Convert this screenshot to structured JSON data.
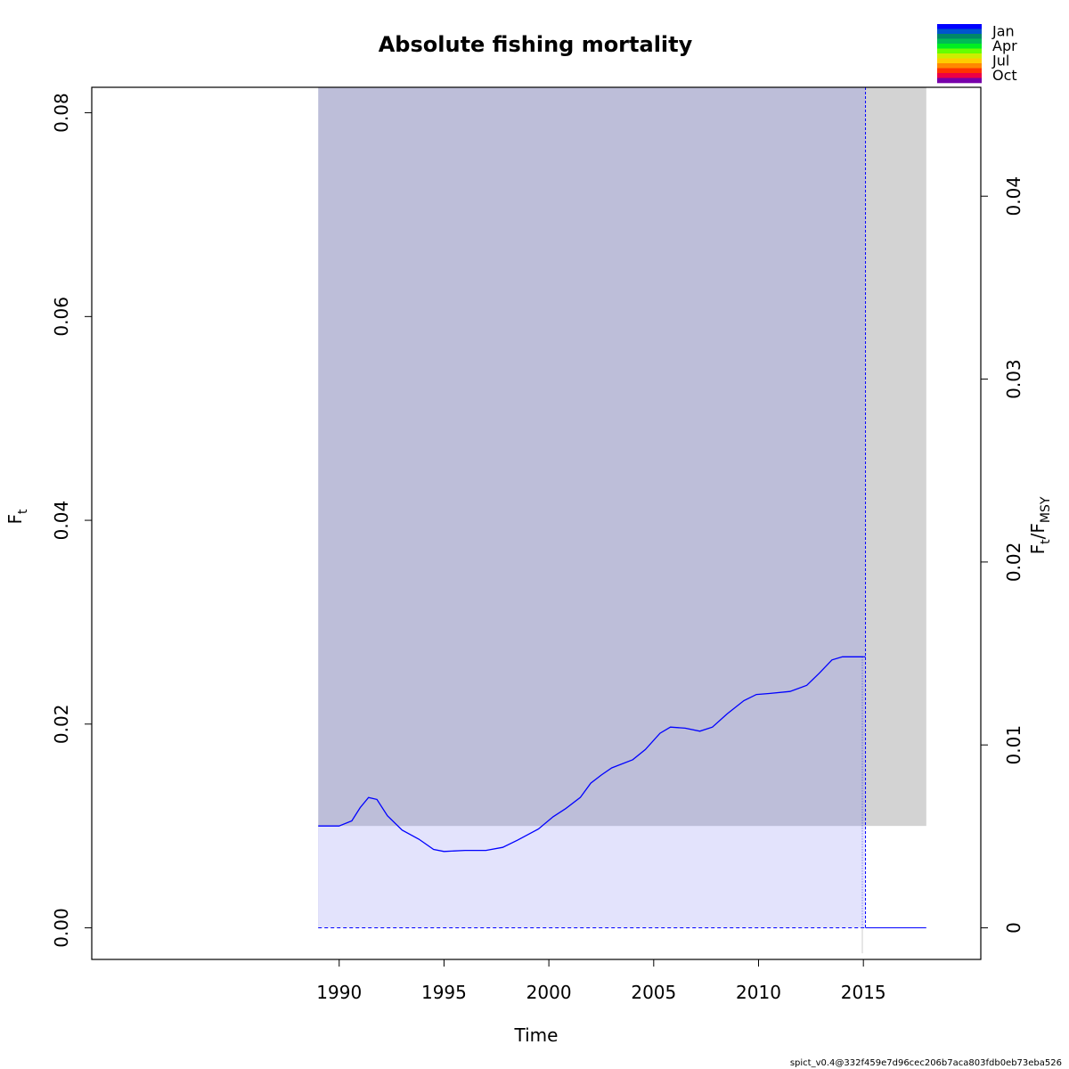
{
  "chart_data": {
    "type": "line",
    "title": "Absolute fishing mortality",
    "xlabel": "Time",
    "ylabel_main": "F",
    "ylabel_sub": "t",
    "y2label": {
      "num_main": "F",
      "num_sub": "t",
      "den_main": "F",
      "den_sub": "MSY"
    },
    "xlim": [
      1978.2,
      2020.6
    ],
    "ylim": [
      -0.0031,
      0.0825
    ],
    "y2_per_y": 0.557,
    "x_ticks": [
      1990,
      1995,
      2000,
      2005,
      2010,
      2015
    ],
    "x_tick_labels": [
      "1990",
      "1995",
      "2000",
      "2005",
      "2010",
      "2015"
    ],
    "y_ticks": [
      0.0,
      0.02,
      0.04,
      0.06,
      0.08
    ],
    "y_tick_labels": [
      "0.00",
      "0.02",
      "0.04",
      "0.06",
      "0.08"
    ],
    "y2_ticks": [
      0,
      0.01,
      0.02,
      0.03,
      0.04
    ],
    "y2_tick_labels": [
      "0",
      "0.01",
      "0.02",
      "0.03",
      "0.04"
    ],
    "ci_region": {
      "x_start": 1989.0,
      "x_end": 2015.1,
      "y_low": 0.0,
      "y_high": 0.0825,
      "color": "#bdbed9"
    },
    "fmsy_band": {
      "x_start": 1989.0,
      "x_end": 2015.1,
      "y_low": 0.0,
      "y_high": 0.01,
      "color": "#e3e3fc"
    },
    "forecast_region": {
      "x_start": 2015.1,
      "x_end": 2018.0,
      "y_low": 0.01,
      "y_high": 0.0825,
      "color": "#d3d3d3"
    },
    "forecast_start": 2015.1,
    "baseline_dashed": {
      "x_start": 1989.0,
      "x_end": 2015.1,
      "y": 0.0
    },
    "forecast_baseline": {
      "x_start": 2015.1,
      "x_end": 2018.0,
      "y": 0.0
    },
    "series": [
      {
        "color": "#0000ff",
        "x": [
          1989.0,
          1990.0,
          1990.6,
          1991.0,
          1991.4,
          1991.8,
          1992.3,
          1993.0,
          1993.8,
          1994.5,
          1995.0,
          1996.0,
          1997.0,
          1997.8,
          1998.5,
          1999.5,
          2000.2,
          2000.8,
          2001.5,
          2002.0,
          2002.5,
          2003.0,
          2004.0,
          2004.6,
          2005.3,
          2005.8,
          2006.5,
          2007.2,
          2007.8,
          2008.5,
          2009.3,
          2009.9,
          2010.5,
          2011.5,
          2012.3,
          2012.9,
          2013.5,
          2014.0,
          2015.0
        ],
        "y": [
          0.01,
          0.01,
          0.0105,
          0.0118,
          0.0128,
          0.0126,
          0.011,
          0.0096,
          0.0087,
          0.0077,
          0.0075,
          0.0076,
          0.0076,
          0.0079,
          0.0086,
          0.0097,
          0.0109,
          0.0117,
          0.0128,
          0.0142,
          0.015,
          0.0157,
          0.0165,
          0.0175,
          0.0191,
          0.0197,
          0.0196,
          0.0193,
          0.0197,
          0.021,
          0.0223,
          0.0229,
          0.023,
          0.0232,
          0.0238,
          0.025,
          0.0263,
          0.0266,
          0.0266
        ]
      }
    ],
    "legend": {
      "position": "top-right",
      "labels": [
        "Jan",
        "Apr",
        "Jul",
        "Oct"
      ],
      "colors": [
        "#0000ff",
        "#0055cc",
        "#008866",
        "#00bb55",
        "#00ee22",
        "#66ff00",
        "#ccee00",
        "#ffcc00",
        "#ff8800",
        "#ff3300",
        "#ee0044",
        "#7700aa"
      ]
    },
    "footer": "spict_v0.4@332f459e7d96cec206b7aca803fdb0eb73eba526",
    "grid": false
  }
}
